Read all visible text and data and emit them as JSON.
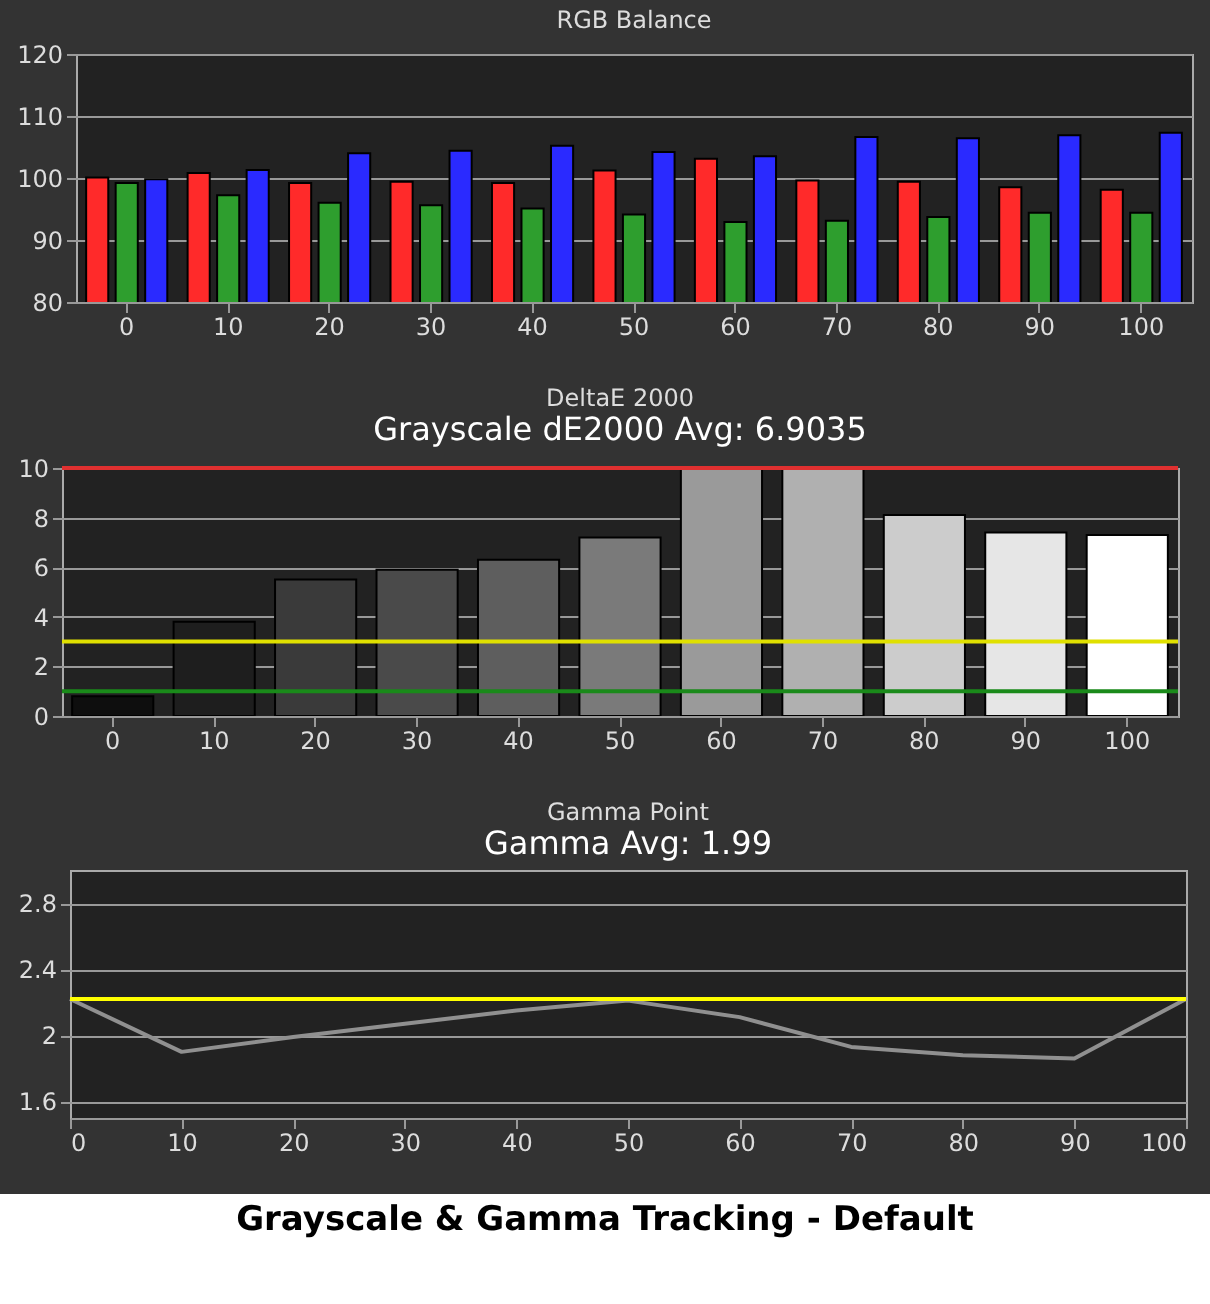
{
  "chart_data": [
    {
      "type": "bar",
      "title": "RGB Balance",
      "categories": [
        "0",
        "10",
        "20",
        "30",
        "40",
        "50",
        "60",
        "70",
        "80",
        "90",
        "100"
      ],
      "series": [
        {
          "color": "#ff2a2a",
          "values": [
            100.1,
            100.8,
            99.2,
            99.4,
            99.2,
            101.2,
            103.1,
            99.6,
            99.4,
            98.5,
            98.1
          ]
        },
        {
          "color": "#2e9e2e",
          "values": [
            99.2,
            97.2,
            96.0,
            95.6,
            95.1,
            94.1,
            92.9,
            93.1,
            93.7,
            94.4,
            94.4
          ]
        },
        {
          "color": "#2a2aff",
          "values": [
            99.8,
            101.3,
            104.0,
            104.4,
            105.2,
            104.2,
            103.5,
            106.6,
            106.4,
            106.9,
            107.3
          ]
        }
      ],
      "ylim": [
        80,
        120
      ],
      "yticks": [
        80,
        90,
        100,
        110,
        120
      ],
      "grid": "y"
    },
    {
      "type": "bar",
      "title": "DeltaE 2000",
      "categories": [
        "0",
        "10",
        "20",
        "30",
        "40",
        "50",
        "60",
        "70",
        "80",
        "90",
        "100"
      ],
      "values": [
        0.8,
        3.8,
        5.5,
        5.9,
        6.3,
        7.2,
        10,
        10,
        8.1,
        7.4,
        7.3
      ],
      "colors": [
        "#0e0e0e",
        "#1e1e1e",
        "#3a3a3a",
        "#4a4a4a",
        "#5e5e5e",
        "#7a7a7a",
        "#9a9a9a",
        "#b0b0b0",
        "#cccccc",
        "#e6e6e6",
        "#ffffff"
      ],
      "ylim": [
        0,
        10
      ],
      "yticks": [
        0,
        2,
        4,
        6,
        8,
        10
      ],
      "grid": "y",
      "ref_lines": [
        {
          "axis": "y",
          "value": 10,
          "color": "#e03030"
        },
        {
          "axis": "y",
          "value": 3,
          "color": "#e0e000"
        },
        {
          "axis": "y",
          "value": 1,
          "color": "#1a8a1a"
        }
      ],
      "annotations": [
        "Grayscale dE2000 Avg: 6.9035"
      ]
    },
    {
      "type": "line",
      "title": "Gamma Point",
      "x": [
        0,
        10,
        20,
        30,
        40,
        50,
        60,
        70,
        80,
        90,
        100
      ],
      "series": [
        {
          "color": "#909090",
          "values": [
            2.22,
            1.9,
            1.99,
            2.07,
            2.15,
            2.21,
            2.11,
            1.93,
            1.88,
            1.86,
            2.22
          ]
        }
      ],
      "xlim": [
        0,
        100
      ],
      "xticks": [
        0,
        10,
        20,
        30,
        40,
        50,
        60,
        70,
        80,
        90,
        100
      ],
      "ylim": [
        1.5,
        3.0
      ],
      "yticks": [
        1.6,
        2,
        2.4,
        2.8
      ],
      "grid": "y",
      "marker": "none",
      "ref_lines": [
        {
          "axis": "y",
          "value": 2.22,
          "color": "#ffff00"
        }
      ],
      "annotations": [
        "Gamma Avg: 1.99",
        "Grayscale & Gamma Tracking - Default"
      ]
    }
  ]
}
